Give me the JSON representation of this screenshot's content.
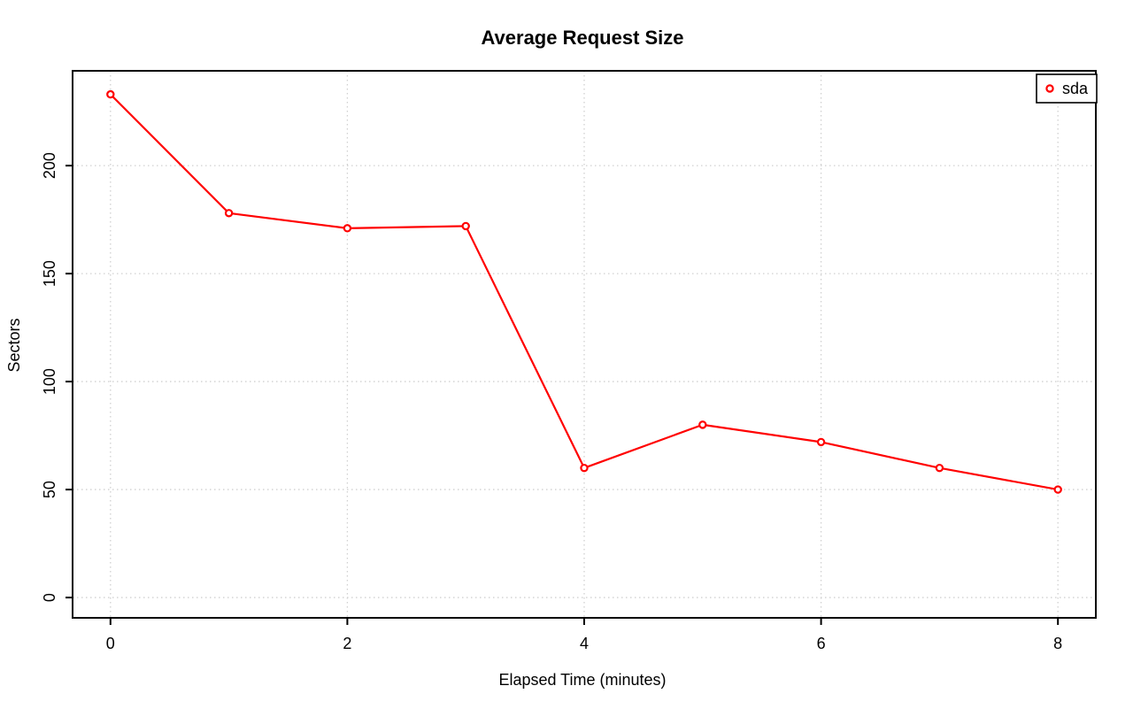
{
  "page": {
    "background": "#ffffff"
  },
  "chart_data": {
    "type": "line",
    "title": "Average Request Size",
    "xlabel": "Elapsed Time (minutes)",
    "ylabel": "Sectors",
    "x": [
      0,
      1,
      2,
      3,
      4,
      5,
      6,
      7,
      8
    ],
    "series": [
      {
        "name": "sda",
        "color": "#ff0000",
        "marker": "open-circle",
        "values": [
          233,
          178,
          171,
          172,
          60,
          80,
          72,
          60,
          50
        ]
      }
    ],
    "xticks": [
      0,
      2,
      4,
      6,
      8
    ],
    "yticks": [
      0,
      50,
      100,
      150,
      200
    ],
    "xlim": [
      -0.32,
      8.32
    ],
    "ylim": [
      -9.4,
      243.9
    ],
    "grid": {
      "style": "dotted",
      "color": "#d0d0d0"
    },
    "axis_color": "#000000",
    "legend": {
      "position": "topright",
      "label": "sda"
    }
  }
}
